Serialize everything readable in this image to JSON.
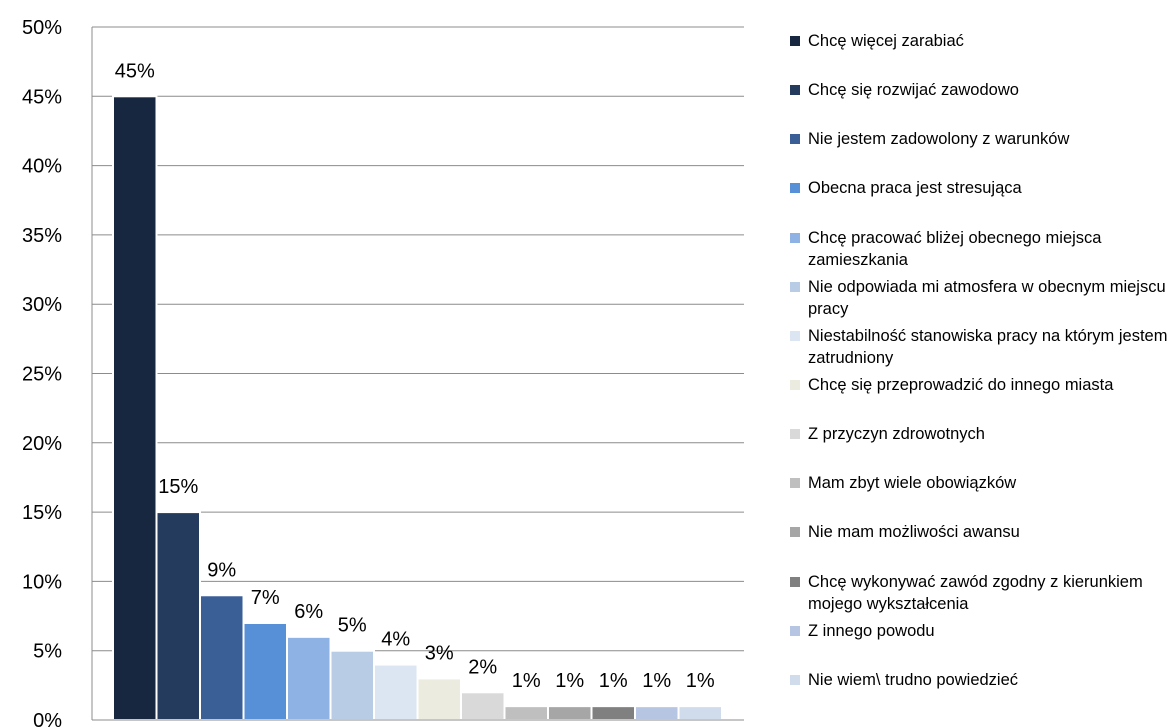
{
  "chart_data": {
    "type": "bar",
    "categories": [
      "Chcę więcej zarabiać",
      "Chcę się rozwijać zawodowo",
      "Nie jestem zadowolony z warunków",
      "Obecna praca jest stresująca",
      "Chcę pracować bliżej obecnego miejsca zamieszkania",
      "Nie odpowiada mi atmosfera w obecnym miejscu pracy",
      "Niestabilność stanowiska pracy na którym jestem zatrudniony",
      "Chcę się przeprowadzić do innego miasta",
      "Z przyczyn zdrowotnych",
      "Mam zbyt wiele obowiązków",
      "Nie mam możliwości awansu",
      "Chcę wykonywać zawód zgodny z kierunkiem mojego wykształcenia",
      "Z innego powodu",
      "Nie wiem\\ trudno powiedzieć"
    ],
    "values": [
      45,
      15,
      9,
      7,
      6,
      5,
      4,
      3,
      2,
      1,
      1,
      1,
      1,
      1
    ],
    "value_labels": [
      "45%",
      "15%",
      "9%",
      "7%",
      "6%",
      "5%",
      "4%",
      "3%",
      "2%",
      "1%",
      "1%",
      "1%",
      "1%",
      "1%"
    ],
    "colors": [
      "#17273f",
      "#243b5e",
      "#3a5f96",
      "#5890d8",
      "#8db2e3",
      "#b8cde5",
      "#dbe6f2",
      "#ecebe0",
      "#d9d9d9",
      "#bfbfbf",
      "#a6a6a6",
      "#808080",
      "#b6c6e2",
      "#d0dcec"
    ],
    "ylim": [
      0,
      50
    ],
    "yticks": [
      0,
      5,
      10,
      15,
      20,
      25,
      30,
      35,
      40,
      45,
      50
    ],
    "ytick_labels": [
      "0%",
      "5%",
      "10%",
      "15%",
      "20%",
      "25%",
      "30%",
      "35%",
      "40%",
      "45%",
      "50%"
    ],
    "grid": true,
    "legend": "right"
  }
}
